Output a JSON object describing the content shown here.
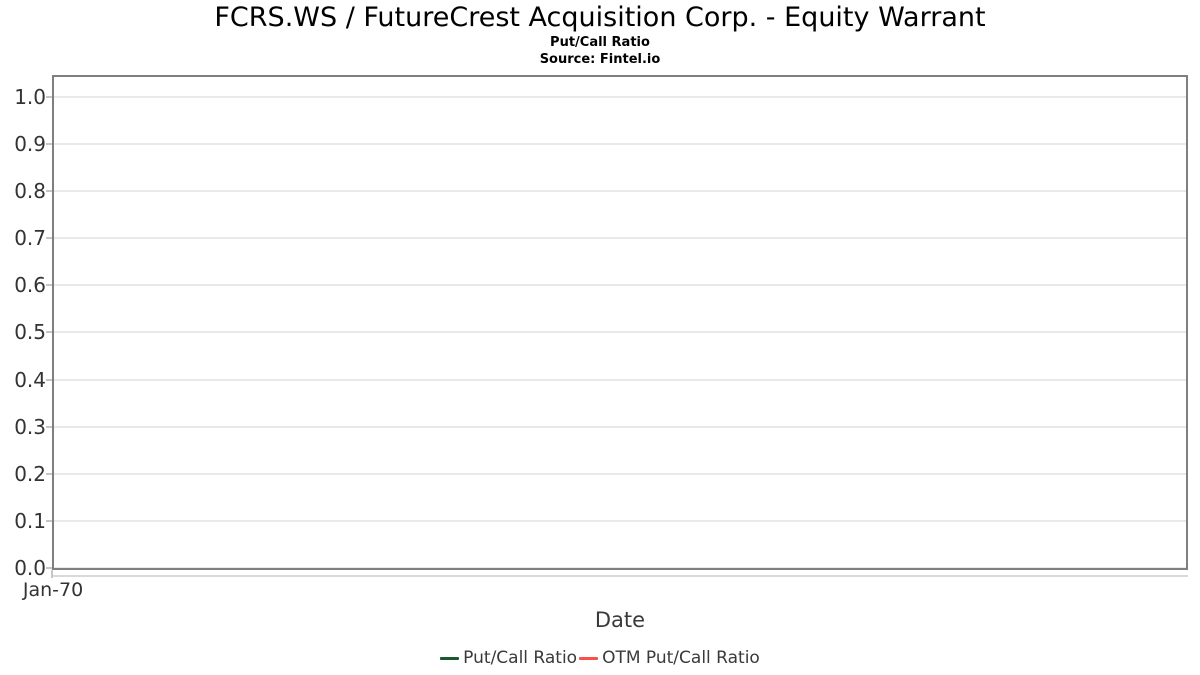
{
  "title": "FCRS.WS / FutureCrest Acquisition Corp. - Equity Warrant",
  "subtitle": "Put/Call Ratio",
  "source": "Source: Fintel.io",
  "colors": {
    "put_call_line": "#1b5730",
    "otm_put_call_line": "#f8514a",
    "grid_line": "#e9e9e9",
    "plot_border": "#7f7f7f",
    "axis_line": "#d9d9d9",
    "tick_text": "#333333",
    "label_text": "#3a3a3a",
    "title_text": "#000000",
    "background": "#ffffff"
  },
  "legend": {
    "items": [
      {
        "label": "Put/Call Ratio",
        "color": "#1b5730"
      },
      {
        "label": "OTM Put/Call Ratio",
        "color": "#f8514a"
      }
    ]
  },
  "chart_data": {
    "type": "line",
    "title": "FCRS.WS / FutureCrest Acquisition Corp. - Equity Warrant",
    "subtitle": "Put/Call Ratio",
    "source": "Source: Fintel.io",
    "xlabel": "Date",
    "x_tick_labels": [
      "Jan-70"
    ],
    "y_tick_labels": [
      "0.0",
      "0.1",
      "0.2",
      "0.3",
      "0.4",
      "0.5",
      "0.6",
      "0.7",
      "0.8",
      "0.9",
      "1.0"
    ],
    "ylim": [
      0,
      1.042
    ],
    "grid": true,
    "legend_position": "bottom",
    "series": [
      {
        "name": "Put/Call Ratio",
        "color": "#1b5730",
        "x": [],
        "values": []
      },
      {
        "name": "OTM Put/Call Ratio",
        "color": "#f8514a",
        "x": [],
        "values": []
      }
    ]
  }
}
